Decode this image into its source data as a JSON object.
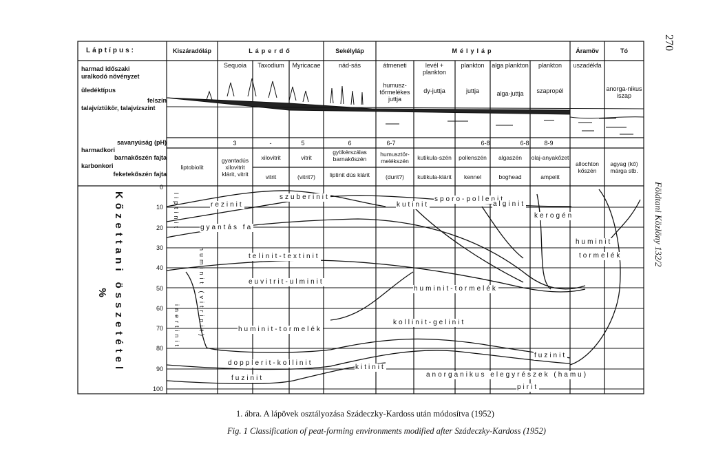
{
  "header": {
    "row_label": "Láptípus:",
    "columns": [
      "Kiszáradóláp",
      "Láperdő",
      "Sekélyláp",
      "Mélyláp",
      "Áramöv",
      "Tó"
    ]
  },
  "row_labels": [
    "harmad időszaki",
    "uralkodó növényzet",
    "üledéktípus",
    "felszín",
    "talajvíztükör, talajvízszint",
    "savanyúság (pH)",
    "harmadkori",
    "barnakőszén fajta",
    "karbonkori",
    "feketekőszén fajta"
  ],
  "vegetation": [
    "Sequoia",
    "Taxodium",
    "Myricacae",
    "nád-sás",
    "átmeneti",
    "levél + plankton",
    "plankton",
    "alga plankton",
    "plankton",
    "uszadékfa"
  ],
  "sediment": [
    "humusz-tőrmelékes juttja",
    "dy-juttja",
    "juttja",
    "alga-juttja",
    "szapropél",
    "anorga-nikus iszap"
  ],
  "ph": [
    "3",
    "-",
    "5",
    "6",
    "6-7",
    "6-8",
    "6-8",
    "8-9"
  ],
  "coal": [
    "liptobiolit",
    "gyantadús xilovitrit klárit, vitrit",
    "xilovitrit",
    "vitrit",
    "vitrit",
    "(vitrit?)",
    "gyökérszálas barnakőszén",
    "liptinit dús klárit",
    "humusztör-melékszén",
    "(durit?)",
    "kutikula-szén",
    "kutikula-klárit",
    "pollenszén",
    "kennel",
    "algaszén",
    "boghead",
    "olaj-anyakőzet",
    "ampelit",
    "allochton kőszén",
    "agyag (kő) márga stb."
  ],
  "axis": {
    "title": "Kőzettani összetétel",
    "unit": "%",
    "ticks": [
      "0",
      "10",
      "20",
      "30",
      "40",
      "50",
      "60",
      "70",
      "80",
      "90",
      "100"
    ]
  },
  "components": [
    "rezinit",
    "szuberinit",
    "kutinit",
    "sporo-pollenit",
    "alginit",
    "kerogén",
    "gyantás fa",
    "huminit",
    "tormelék",
    "telinit-textinit",
    "euvitrit-ulminit",
    "huminit-tormelék",
    "kollinit-gelinit",
    "huminit-tormelék",
    "fuzinit",
    "dopplerit-kollinit",
    "kitinit",
    "anorganikus elegyrészek (hamu)",
    "fuzinit",
    "pirit",
    "liptinit",
    "huminit (vitrinit)",
    "inertinit"
  ],
  "page_number": "270",
  "journal": "Földtani Közlöny 132/2",
  "caption_hu": "1. ábra. A lápövek osztályozása Szádeczky-Kardoss után módosítva (1952)",
  "caption_en": "Fig. 1 Classification of peat-forming environments modified after Szádeczky-Kardoss (1952)"
}
